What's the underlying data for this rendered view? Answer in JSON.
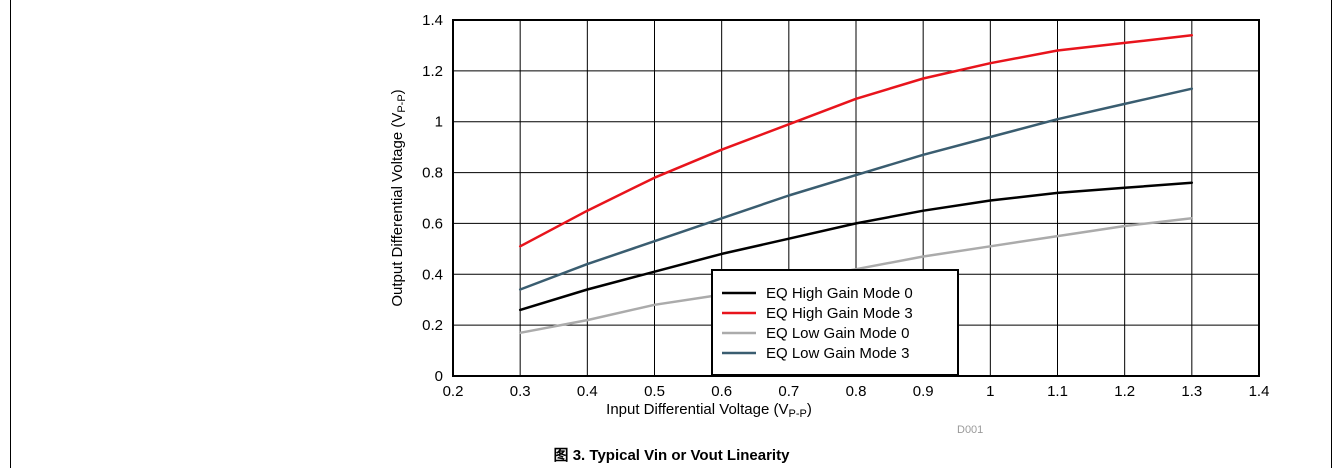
{
  "caption": "图 3. Typical Vin or Vout Linearity",
  "figure_id": "D001",
  "chart_data": {
    "type": "line",
    "title": "",
    "xlabel": "Input Differential Voltage (V",
    "xlabel_sub": "P-P",
    "xlabel_close": ")",
    "ylabel": "Output Differential Voltage (V",
    "ylabel_sub": "P-P",
    "ylabel_close": ")",
    "xlim": [
      0.2,
      1.4
    ],
    "ylim": [
      0,
      1.4
    ],
    "xticks": [
      0.2,
      0.3,
      0.4,
      0.5,
      0.6,
      0.7,
      0.8,
      0.9,
      1,
      1.1,
      1.2,
      1.3,
      1.4
    ],
    "xtick_labels": [
      "0.2",
      "0.3",
      "0.4",
      "0.5",
      "0.6",
      "0.7",
      "0.8",
      "0.9",
      "1",
      "1.1",
      "1.2",
      "1.3",
      "1.4"
    ],
    "yticks": [
      0,
      0.2,
      0.4,
      0.6,
      0.8,
      1,
      1.2,
      1.4
    ],
    "ytick_labels": [
      "0",
      "0.2",
      "0.4",
      "0.6",
      "0.8",
      "1",
      "1.2",
      "1.4"
    ],
    "grid": true,
    "legend_position": "bottom-right",
    "x": [
      0.3,
      0.4,
      0.5,
      0.6,
      0.7,
      0.8,
      0.9,
      1.0,
      1.1,
      1.2,
      1.3
    ],
    "series": [
      {
        "name": "EQ High Gain Mode 0",
        "color": "#000000",
        "values": [
          0.26,
          0.34,
          0.41,
          0.48,
          0.54,
          0.6,
          0.65,
          0.69,
          0.72,
          0.74,
          0.76
        ]
      },
      {
        "name": "EQ High Gain Mode 3",
        "color": "#e8141c",
        "values": [
          0.51,
          0.65,
          0.78,
          0.89,
          0.99,
          1.09,
          1.17,
          1.23,
          1.28,
          1.31,
          1.34
        ]
      },
      {
        "name": "EQ Low Gain Mode 0",
        "color": "#ababab",
        "values": [
          0.17,
          0.22,
          0.28,
          0.32,
          0.37,
          0.42,
          0.47,
          0.51,
          0.55,
          0.59,
          0.62
        ]
      },
      {
        "name": "EQ Low Gain Mode 3",
        "color": "#3a5d70",
        "values": [
          0.34,
          0.44,
          0.53,
          0.62,
          0.71,
          0.79,
          0.87,
          0.94,
          1.01,
          1.07,
          1.13
        ]
      }
    ]
  }
}
